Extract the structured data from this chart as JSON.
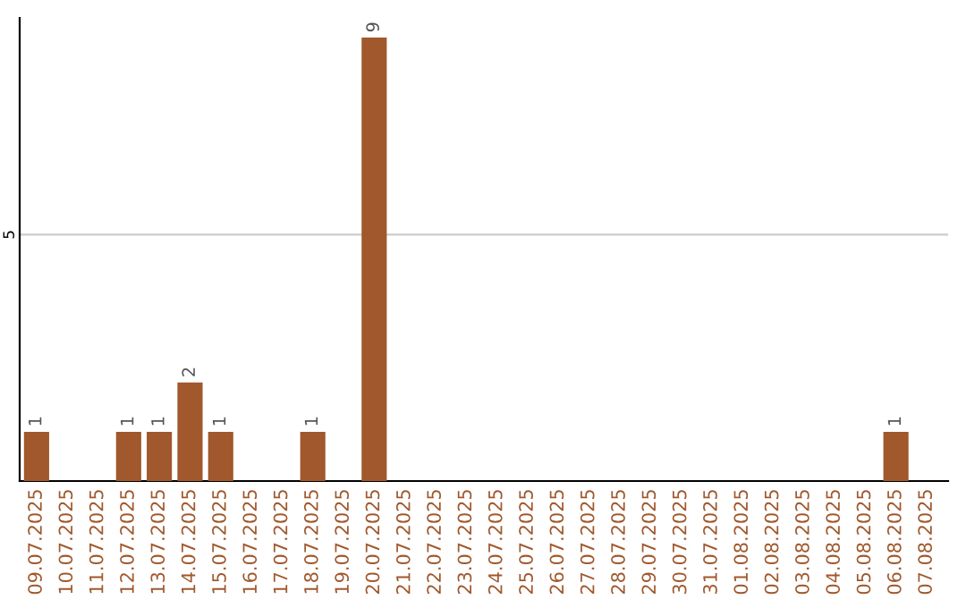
{
  "chart_data": {
    "type": "bar",
    "categories": [
      "09.07.2025",
      "10.07.2025",
      "11.07.2025",
      "12.07.2025",
      "13.07.2025",
      "14.07.2025",
      "15.07.2025",
      "16.07.2025",
      "17.07.2025",
      "18.07.2025",
      "19.07.2025",
      "20.07.2025",
      "21.07.2025",
      "22.07.2025",
      "23.07.2025",
      "24.07.2025",
      "25.07.2025",
      "26.07.2025",
      "27.07.2025",
      "28.07.2025",
      "29.07.2025",
      "30.07.2025",
      "31.07.2025",
      "01.08.2025",
      "02.08.2025",
      "03.08.2025",
      "04.08.2025",
      "05.08.2025",
      "06.08.2025",
      "07.08.2025"
    ],
    "values": [
      1,
      0,
      0,
      1,
      1,
      2,
      1,
      0,
      0,
      1,
      0,
      9,
      0,
      0,
      0,
      0,
      0,
      0,
      0,
      0,
      0,
      0,
      0,
      0,
      0,
      0,
      0,
      0,
      1,
      0
    ],
    "value_labels": [
      "1",
      null,
      null,
      "1",
      "1",
      "2",
      "1",
      null,
      null,
      "1",
      null,
      "9",
      null,
      null,
      null,
      null,
      null,
      null,
      null,
      null,
      null,
      null,
      null,
      null,
      null,
      null,
      null,
      null,
      "1",
      null
    ],
    "color": "#a0582c",
    "ylim": [
      0,
      9.4
    ],
    "yticks": [
      5
    ],
    "grid": "y",
    "legend": false
  }
}
